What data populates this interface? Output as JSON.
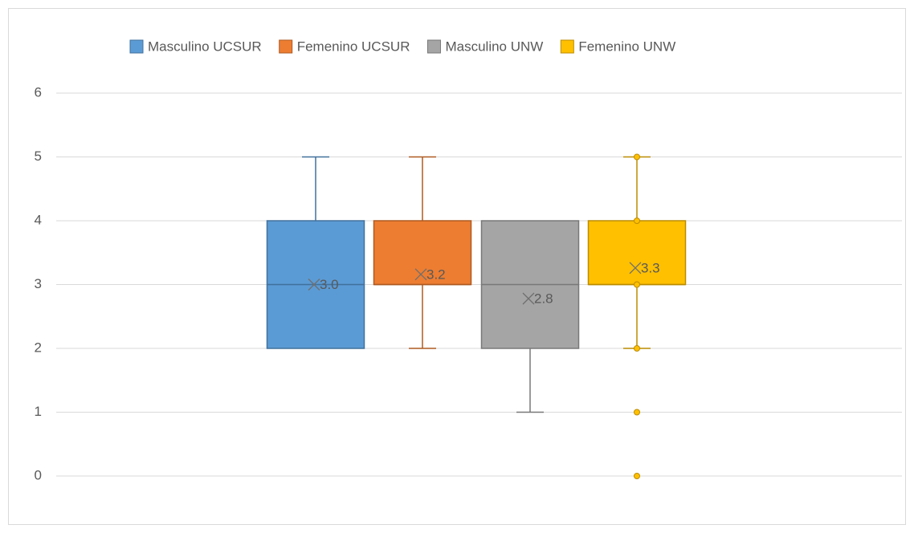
{
  "chart_data": {
    "type": "box",
    "ylim": [
      0,
      6
    ],
    "yticks": [
      0,
      1,
      2,
      3,
      4,
      5,
      6
    ],
    "grid": true,
    "legend": "top",
    "series": [
      {
        "name": "Masculino UCSUR",
        "color": "#5b9bd5",
        "stroke": "#41719c",
        "min": 2,
        "q1": 2,
        "median": 3,
        "q3": 4,
        "max": 5,
        "mean": 3.0,
        "mean_label": "3.0",
        "points": []
      },
      {
        "name": "Femenino UCSUR",
        "color": "#ed7d31",
        "stroke": "#ae5a21",
        "min": 2,
        "q1": 3,
        "median": 3,
        "q3": 4,
        "max": 5,
        "mean": 3.16,
        "mean_label": "3.2",
        "points": []
      },
      {
        "name": "Masculino UNW",
        "color": "#a5a5a5",
        "stroke": "#787878",
        "min": 1,
        "q1": 2,
        "median": 3,
        "q3": 4,
        "max": 4,
        "mean": 2.78,
        "mean_label": "2.8",
        "points": []
      },
      {
        "name": "Femenino UNW",
        "color": "#ffc000",
        "stroke": "#bc8c00",
        "min": 2,
        "q1": 3,
        "median": 3,
        "q3": 4,
        "max": 5,
        "mean": 3.26,
        "mean_label": "3.3",
        "points": [
          0,
          1,
          2,
          3,
          4,
          5
        ]
      }
    ]
  }
}
